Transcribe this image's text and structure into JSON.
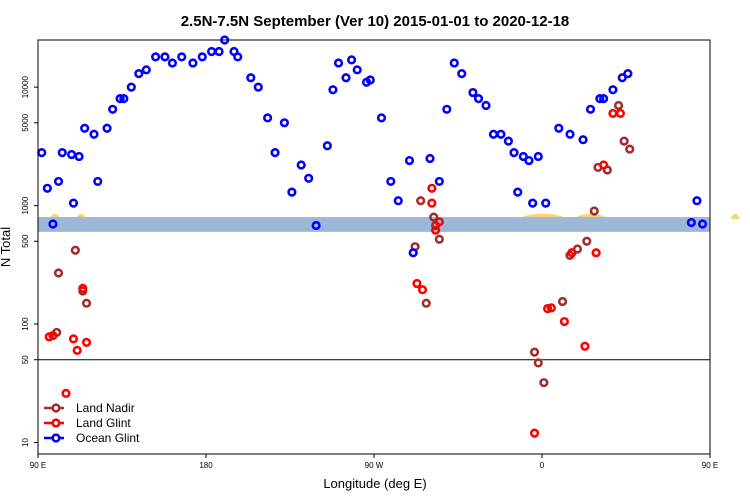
{
  "chart_data": {
    "type": "scatter",
    "title": "2.5N-7.5N September (Ver 10)   2015-01-01 to 2020-12-18",
    "xlabel": "Longitude (deg E)",
    "ylabel": "N Total",
    "x_scale": "linear",
    "y_scale": "log",
    "xlim": [
      90,
      450
    ],
    "ylim": [
      8,
      25000
    ],
    "x_ticks": [
      {
        "value": 90,
        "label": "90 E"
      },
      {
        "value": 180,
        "label": "180"
      },
      {
        "value": 270,
        "label": "90 W"
      },
      {
        "value": 360,
        "label": "0"
      },
      {
        "value": 450,
        "label": "90 E"
      },
      {
        "value": 540,
        "label": "180"
      }
    ],
    "y_ticks": [
      10,
      50,
      100,
      500,
      1000,
      5000,
      10000
    ],
    "reference_line_y": 50,
    "land_band": {
      "color": "#9db7d9",
      "y_range": [
        600,
        800
      ]
    },
    "land_mask_color": "#f5d77a",
    "legend": {
      "position": "bottom-left",
      "entries": [
        "Land Nadir",
        "Land Glint",
        "Ocean Glint"
      ]
    },
    "series": [
      {
        "name": "Land Nadir",
        "color": "#a52a2a",
        "points": [
          [
            100,
            85
          ],
          [
            101,
            270
          ],
          [
            110,
            420
          ],
          [
            114,
            190
          ],
          [
            116,
            150
          ],
          [
            292,
            450
          ],
          [
            295,
            1100
          ],
          [
            298,
            150
          ],
          [
            302,
            800
          ],
          [
            303,
            680
          ],
          [
            305,
            520
          ],
          [
            356,
            58
          ],
          [
            358,
            47
          ],
          [
            361,
            32
          ],
          [
            371,
            155
          ],
          [
            375,
            380
          ],
          [
            379,
            430
          ],
          [
            384,
            500
          ],
          [
            388,
            900
          ],
          [
            390,
            2100
          ],
          [
            395,
            2000
          ],
          [
            401,
            7000
          ],
          [
            404,
            3500
          ],
          [
            407,
            3000
          ],
          [
            462,
            80
          ],
          [
            469,
            80
          ],
          [
            472,
            270
          ],
          [
            486,
            420
          ],
          [
            489,
            190
          ],
          [
            491,
            150
          ]
        ]
      },
      {
        "name": "Land Glint",
        "color": "#ff0000",
        "points": [
          [
            96,
            78
          ],
          [
            98,
            80
          ],
          [
            105,
            26
          ],
          [
            109,
            75
          ],
          [
            111,
            60
          ],
          [
            114,
            200
          ],
          [
            116,
            70
          ],
          [
            293,
            220
          ],
          [
            296,
            195
          ],
          [
            301,
            1050
          ],
          [
            301,
            1400
          ],
          [
            303,
            620
          ],
          [
            305,
            730
          ],
          [
            356,
            12
          ],
          [
            363,
            135
          ],
          [
            365,
            137
          ],
          [
            372,
            105
          ],
          [
            376,
            400
          ],
          [
            383,
            65
          ],
          [
            389,
            400
          ],
          [
            393,
            2200
          ],
          [
            398,
            6000
          ],
          [
            402,
            6000
          ],
          [
            463,
            80
          ],
          [
            465,
            75
          ],
          [
            468,
            70
          ],
          [
            473,
            26
          ],
          [
            478,
            75
          ],
          [
            481,
            62
          ],
          [
            487,
            200
          ],
          [
            490,
            72
          ]
        ]
      },
      {
        "name": "Ocean Glint",
        "color": "#0000ff",
        "points": [
          [
            92,
            2800
          ],
          [
            95,
            1400
          ],
          [
            98,
            700
          ],
          [
            101,
            1600
          ],
          [
            103,
            2800
          ],
          [
            108,
            2700
          ],
          [
            109,
            1050
          ],
          [
            112,
            2600
          ],
          [
            115,
            4500
          ],
          [
            120,
            4000
          ],
          [
            122,
            1600
          ],
          [
            127,
            4500
          ],
          [
            130,
            6500
          ],
          [
            134,
            8000
          ],
          [
            136,
            8000
          ],
          [
            140,
            10000
          ],
          [
            144,
            13000
          ],
          [
            148,
            14000
          ],
          [
            153,
            18000
          ],
          [
            158,
            18000
          ],
          [
            162,
            16000
          ],
          [
            167,
            18000
          ],
          [
            173,
            16000
          ],
          [
            178,
            18000
          ],
          [
            183,
            20000
          ],
          [
            187,
            20000
          ],
          [
            190,
            25000
          ],
          [
            195,
            20000
          ],
          [
            197,
            18000
          ],
          [
            204,
            12000
          ],
          [
            208,
            10000
          ],
          [
            213,
            5500
          ],
          [
            217,
            2800
          ],
          [
            222,
            5000
          ],
          [
            226,
            1300
          ],
          [
            231,
            2200
          ],
          [
            235,
            1700
          ],
          [
            239,
            680
          ],
          [
            245,
            3200
          ],
          [
            248,
            9500
          ],
          [
            251,
            16000
          ],
          [
            255,
            12000
          ],
          [
            258,
            17000
          ],
          [
            261,
            14000
          ],
          [
            266,
            11000
          ],
          [
            268,
            11500
          ],
          [
            274,
            5500
          ],
          [
            279,
            1600
          ],
          [
            283,
            1100
          ],
          [
            289,
            2400
          ],
          [
            291,
            400
          ],
          [
            300,
            2500
          ],
          [
            305,
            1600
          ],
          [
            309,
            6500
          ],
          [
            313,
            16000
          ],
          [
            317,
            13000
          ],
          [
            323,
            9000
          ],
          [
            326,
            8000
          ],
          [
            330,
            7000
          ],
          [
            334,
            4000
          ],
          [
            338,
            4000
          ],
          [
            342,
            3500
          ],
          [
            345,
            2800
          ],
          [
            347,
            1300
          ],
          [
            350,
            2600
          ],
          [
            353,
            2400
          ],
          [
            355,
            1050
          ],
          [
            358,
            2600
          ],
          [
            362,
            1050
          ],
          [
            369,
            4500
          ],
          [
            375,
            4000
          ],
          [
            382,
            3600
          ],
          [
            386,
            6500
          ],
          [
            391,
            8000
          ],
          [
            393,
            8000
          ],
          [
            398,
            9500
          ],
          [
            403,
            12000
          ],
          [
            406,
            13000
          ],
          [
            440,
            720
          ],
          [
            443,
            1100
          ],
          [
            446,
            700
          ]
        ]
      }
    ]
  }
}
